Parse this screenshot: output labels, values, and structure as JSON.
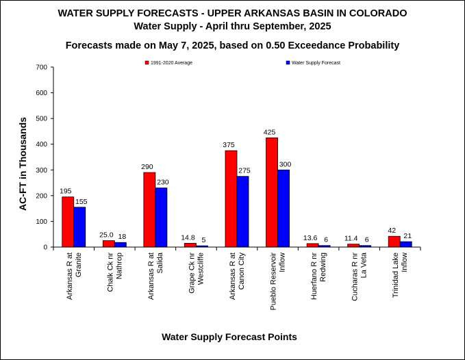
{
  "chart_data": {
    "type": "bar",
    "title": "WATER SUPPLY FORECASTS - UPPER ARKANSAS  BASIN IN COLORADO",
    "subtitle": "Water Supply - April thru September, 2025",
    "subtitle2": "Forecasts made on May 7, 2025, based on 0.50 Exceedance Probability",
    "xlabel": "Water Supply Forecast Points",
    "ylabel": "AC-FT in Thousands",
    "ylim": [
      0,
      700
    ],
    "yticks": [
      0,
      100,
      200,
      300,
      400,
      500,
      600,
      700
    ],
    "grid": false,
    "legend_position": "top",
    "categories": [
      [
        "Arkansas R at",
        "Granite"
      ],
      [
        "Chalk Ck nr",
        "Nathrop"
      ],
      [
        "Arkansas R at",
        "Salida"
      ],
      [
        "Grape Ck nr",
        "Westcliffe"
      ],
      [
        "Arkansas R at",
        "Canon City"
      ],
      [
        "Pueblo Reservoir",
        "Inflow"
      ],
      [
        "Huerfano R nr",
        "Redwing"
      ],
      [
        "Cucharas R nr",
        "La Veta"
      ],
      [
        "Trinidad Lake",
        "Inflow"
      ]
    ],
    "series": [
      {
        "name": "1991-2020 Average",
        "color": "#ff0000",
        "values": [
          195,
          25.0,
          290,
          14.8,
          375,
          425,
          13.6,
          11.4,
          42
        ],
        "labels": [
          "195",
          "25.0",
          "290",
          "14.8",
          "375",
          "425",
          "13.6",
          "11.4",
          "42"
        ]
      },
      {
        "name": "Water Supply Forecast",
        "color": "#0000ff",
        "values": [
          155,
          18,
          230,
          5,
          275,
          300,
          6,
          6,
          21
        ],
        "labels": [
          "155",
          "18",
          "230",
          "5",
          "275",
          "300",
          "6",
          "6",
          "21"
        ]
      }
    ]
  }
}
